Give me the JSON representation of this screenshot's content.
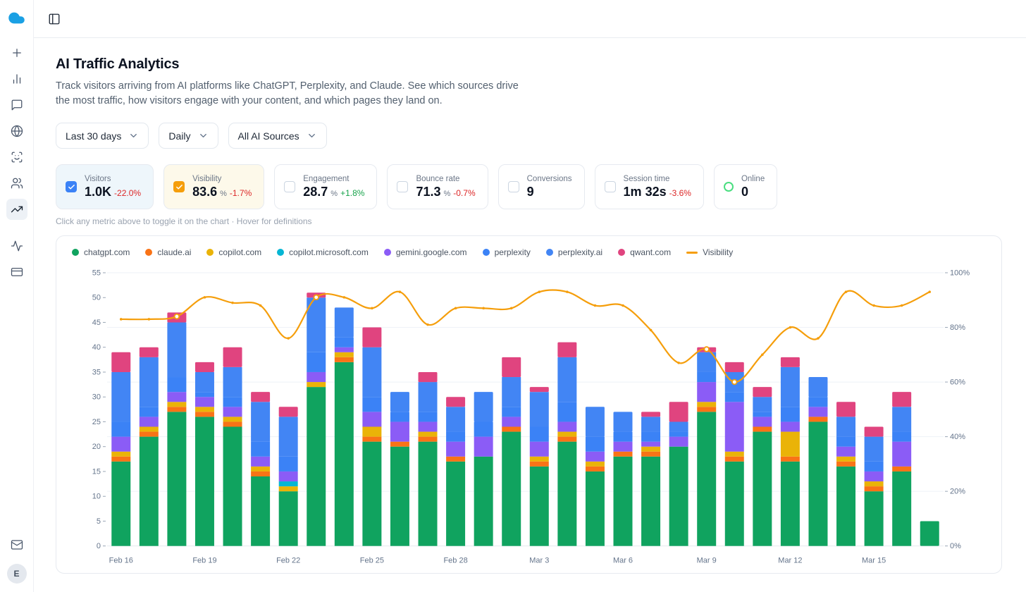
{
  "header": {
    "title": "AI Traffic Analytics",
    "description": "Track visitors arriving from AI platforms like ChatGPT, Perplexity, and Claude. See which sources drive the most traffic, how visitors engage with your content, and which pages they land on."
  },
  "filters": [
    {
      "label": "Last 30 days"
    },
    {
      "label": "Daily"
    },
    {
      "label": "All AI Sources"
    }
  ],
  "metrics": [
    {
      "label": "Visitors",
      "value": "1.0K",
      "unit": "",
      "delta": "-22.0%",
      "delta_dir": "down",
      "state": "checked",
      "checkbox_color": "#3b82f6",
      "card_bg": "#eef6fb"
    },
    {
      "label": "Visibility",
      "value": "83.6",
      "unit": "%",
      "delta": "-1.7%",
      "delta_dir": "down",
      "state": "checked",
      "checkbox_color": "#f59e0b",
      "card_bg": "#fdf9ea"
    },
    {
      "label": "Engagement",
      "value": "28.7",
      "unit": "%",
      "delta": "+1.8%",
      "delta_dir": "up",
      "state": "unchecked",
      "checkbox_color": "",
      "card_bg": "#ffffff"
    },
    {
      "label": "Bounce rate",
      "value": "71.3",
      "unit": "%",
      "delta": "-0.7%",
      "delta_dir": "down",
      "state": "unchecked",
      "checkbox_color": "",
      "card_bg": "#ffffff"
    },
    {
      "label": "Conversions",
      "value": "9",
      "unit": "",
      "delta": "",
      "delta_dir": "",
      "state": "unchecked",
      "checkbox_color": "",
      "card_bg": "#ffffff"
    },
    {
      "label": "Session time",
      "value": "1m 32s",
      "unit": "",
      "delta": "-3.6%",
      "delta_dir": "down",
      "state": "unchecked",
      "checkbox_color": "",
      "card_bg": "#ffffff"
    },
    {
      "label": "Online",
      "value": "0",
      "unit": "",
      "delta": "",
      "delta_dir": "",
      "state": "online",
      "checkbox_color": "#4ade80",
      "card_bg": "#ffffff"
    }
  ],
  "hint": "Click any metric above to toggle it on the chart · Hover for definitions",
  "colors": {
    "logo_blue": "#1aa0e4",
    "accent_blue": "#3b82f6",
    "accent_amber": "#f59e0b",
    "positive": "#16a34a",
    "negative": "#dc2626",
    "online_green": "#4ade80"
  },
  "sidebar": {
    "groups": [
      [
        {
          "name": "new",
          "icon": "plus"
        },
        {
          "name": "analytics",
          "icon": "bar-chart"
        },
        {
          "name": "messages",
          "icon": "message"
        },
        {
          "name": "web",
          "icon": "globe"
        },
        {
          "name": "scan",
          "icon": "scan-face"
        },
        {
          "name": "audience",
          "icon": "users"
        },
        {
          "name": "traffic-trends",
          "icon": "trending-up",
          "active": true
        }
      ],
      [
        {
          "name": "activity",
          "icon": "activity"
        },
        {
          "name": "billing",
          "icon": "credit-card"
        }
      ]
    ],
    "bottom": [
      {
        "name": "inbox",
        "icon": "mail"
      }
    ],
    "avatar_letter": "E"
  },
  "chart_data": {
    "type": "bar",
    "stacked": true,
    "overlay_line": "Visibility",
    "x": [
      "Feb 16",
      "Feb 17",
      "Feb 18",
      "Feb 19",
      "Feb 20",
      "Feb 21",
      "Feb 22",
      "Feb 23",
      "Feb 24",
      "Feb 25",
      "Feb 26",
      "Feb 27",
      "Feb 28",
      "Mar 1",
      "Mar 2",
      "Mar 3",
      "Mar 4",
      "Mar 5",
      "Mar 6",
      "Mar 7",
      "Mar 8",
      "Mar 9",
      "Mar 10",
      "Mar 11",
      "Mar 12",
      "Mar 13",
      "Mar 14",
      "Mar 15",
      "Mar 16",
      "Mar 17"
    ],
    "x_tick_indices": [
      0,
      3,
      6,
      9,
      12,
      15,
      18,
      21,
      24,
      27
    ],
    "x_tick_labels": [
      "Feb 16",
      "Feb 19",
      "Feb 22",
      "Feb 25",
      "Feb 28",
      "Mar 3",
      "Mar 6",
      "Mar 9",
      "Mar 12",
      "Mar 15"
    ],
    "left_axis": {
      "min": 0,
      "max": 55,
      "step": 5
    },
    "right_axis": {
      "min": 0,
      "max": 100,
      "step": 20,
      "suffix": "%"
    },
    "series": [
      {
        "name": "chatgpt.com",
        "type": "bar",
        "color": "#10a35f",
        "values": [
          17,
          22,
          27,
          26,
          24,
          14,
          11,
          32,
          37,
          21,
          20,
          21,
          17,
          18,
          23,
          16,
          21,
          15,
          18,
          18,
          20,
          27,
          17,
          23,
          17,
          25,
          16,
          11,
          15,
          5
        ]
      },
      {
        "name": "claude.ai",
        "type": "bar",
        "color": "#f97316",
        "values": [
          1,
          1,
          1,
          1,
          1,
          1,
          0,
          0,
          1,
          1,
          1,
          1,
          1,
          0,
          1,
          1,
          1,
          1,
          1,
          1,
          0,
          1,
          1,
          1,
          1,
          1,
          1,
          1,
          1,
          0
        ]
      },
      {
        "name": "copilot.com",
        "type": "bar",
        "color": "#eab308",
        "values": [
          1,
          1,
          1,
          1,
          1,
          1,
          1,
          1,
          1,
          2,
          0,
          1,
          0,
          0,
          0,
          1,
          1,
          1,
          0,
          1,
          0,
          1,
          1,
          0,
          5,
          0,
          1,
          1,
          0,
          0
        ]
      },
      {
        "name": "copilot.microsoft.com",
        "type": "bar",
        "color": "#06b6d4",
        "values": [
          0,
          0,
          0,
          0,
          0,
          0,
          1,
          0,
          0,
          0,
          0,
          0,
          0,
          0,
          0,
          0,
          0,
          0,
          0,
          0,
          0,
          0,
          0,
          0,
          0,
          0,
          0,
          0,
          0,
          0
        ]
      },
      {
        "name": "gemini.google.com",
        "type": "bar",
        "color": "#8b5cf6",
        "values": [
          3,
          2,
          2,
          2,
          2,
          2,
          2,
          2,
          1,
          3,
          4,
          2,
          3,
          4,
          2,
          3,
          2,
          2,
          2,
          1,
          2,
          4,
          10,
          2,
          2,
          2,
          2,
          2,
          5,
          0
        ]
      },
      {
        "name": "perplexity",
        "type": "bar",
        "color": "#3b82f6",
        "values": [
          3,
          2,
          3,
          1,
          2,
          3,
          3,
          4,
          2,
          3,
          2,
          2,
          2,
          3,
          2,
          3,
          4,
          3,
          2,
          2,
          1,
          2,
          2,
          1,
          3,
          2,
          2,
          2,
          2,
          0
        ]
      },
      {
        "name": "perplexity.ai",
        "type": "bar",
        "color": "#4285f4",
        "values": [
          10,
          10,
          11,
          4,
          6,
          8,
          8,
          11,
          6,
          10,
          4,
          6,
          5,
          6,
          6,
          7,
          9,
          6,
          4,
          3,
          2,
          4,
          4,
          3,
          8,
          4,
          4,
          5,
          5,
          0
        ]
      },
      {
        "name": "qwant.com",
        "type": "bar",
        "color": "#e0447f",
        "values": [
          4,
          2,
          2,
          2,
          4,
          2,
          2,
          1,
          0,
          4,
          0,
          2,
          2,
          0,
          4,
          1,
          3,
          0,
          0,
          1,
          4,
          1,
          2,
          2,
          2,
          0,
          3,
          2,
          3,
          0
        ]
      },
      {
        "name": "Visibility",
        "type": "line",
        "axis": "right",
        "color": "#f59e0b",
        "marker_indices": [
          2,
          7,
          21,
          22
        ],
        "values": [
          83,
          83,
          84,
          91,
          89,
          88,
          76,
          91,
          91,
          87,
          93,
          81,
          87,
          87,
          87,
          93,
          93,
          88,
          88,
          79,
          67,
          72,
          60,
          70,
          80,
          76,
          93,
          88,
          88,
          93
        ]
      }
    ]
  }
}
